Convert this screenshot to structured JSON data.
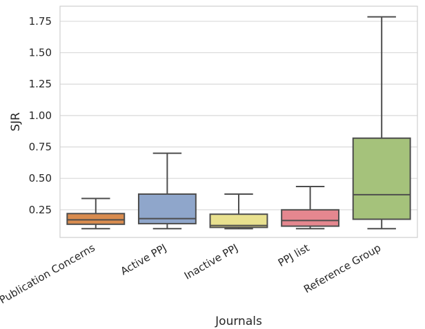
{
  "chart_data": {
    "type": "box",
    "title": "",
    "xlabel": "Journals",
    "ylabel": "SJR",
    "ylim": [
      0.03,
      1.87
    ],
    "yticks": [
      "0.25",
      "0.50",
      "0.75",
      "1.00",
      "1.25",
      "1.50",
      "1.75"
    ],
    "grid": true,
    "categories": [
      "Publication Concerns",
      "Active PPJ",
      "Inactive PPJ",
      "PPJ list",
      "Reference Group"
    ],
    "boxes": [
      {
        "category": "Publication Concerns",
        "whisker_low": 0.1,
        "q1": 0.135,
        "median": 0.17,
        "q3": 0.22,
        "whisker_high": 0.34,
        "color": "#d98c4f"
      },
      {
        "category": "Active PPJ",
        "whisker_low": 0.1,
        "q1": 0.14,
        "median": 0.18,
        "q3": 0.375,
        "whisker_high": 0.7,
        "color": "#8fa6cb"
      },
      {
        "category": "Inactive PPJ",
        "whisker_low": 0.1,
        "q1": 0.11,
        "median": 0.125,
        "q3": 0.215,
        "whisker_high": 0.375,
        "color": "#e9e18f"
      },
      {
        "category": "PPJ list",
        "whisker_low": 0.1,
        "q1": 0.12,
        "median": 0.165,
        "q3": 0.25,
        "whisker_high": 0.435,
        "color": "#e5878f"
      },
      {
        "category": "Reference Group",
        "whisker_low": 0.1,
        "q1": 0.175,
        "median": 0.37,
        "q3": 0.82,
        "whisker_high": 1.785,
        "color": "#a5c27b"
      }
    ]
  }
}
